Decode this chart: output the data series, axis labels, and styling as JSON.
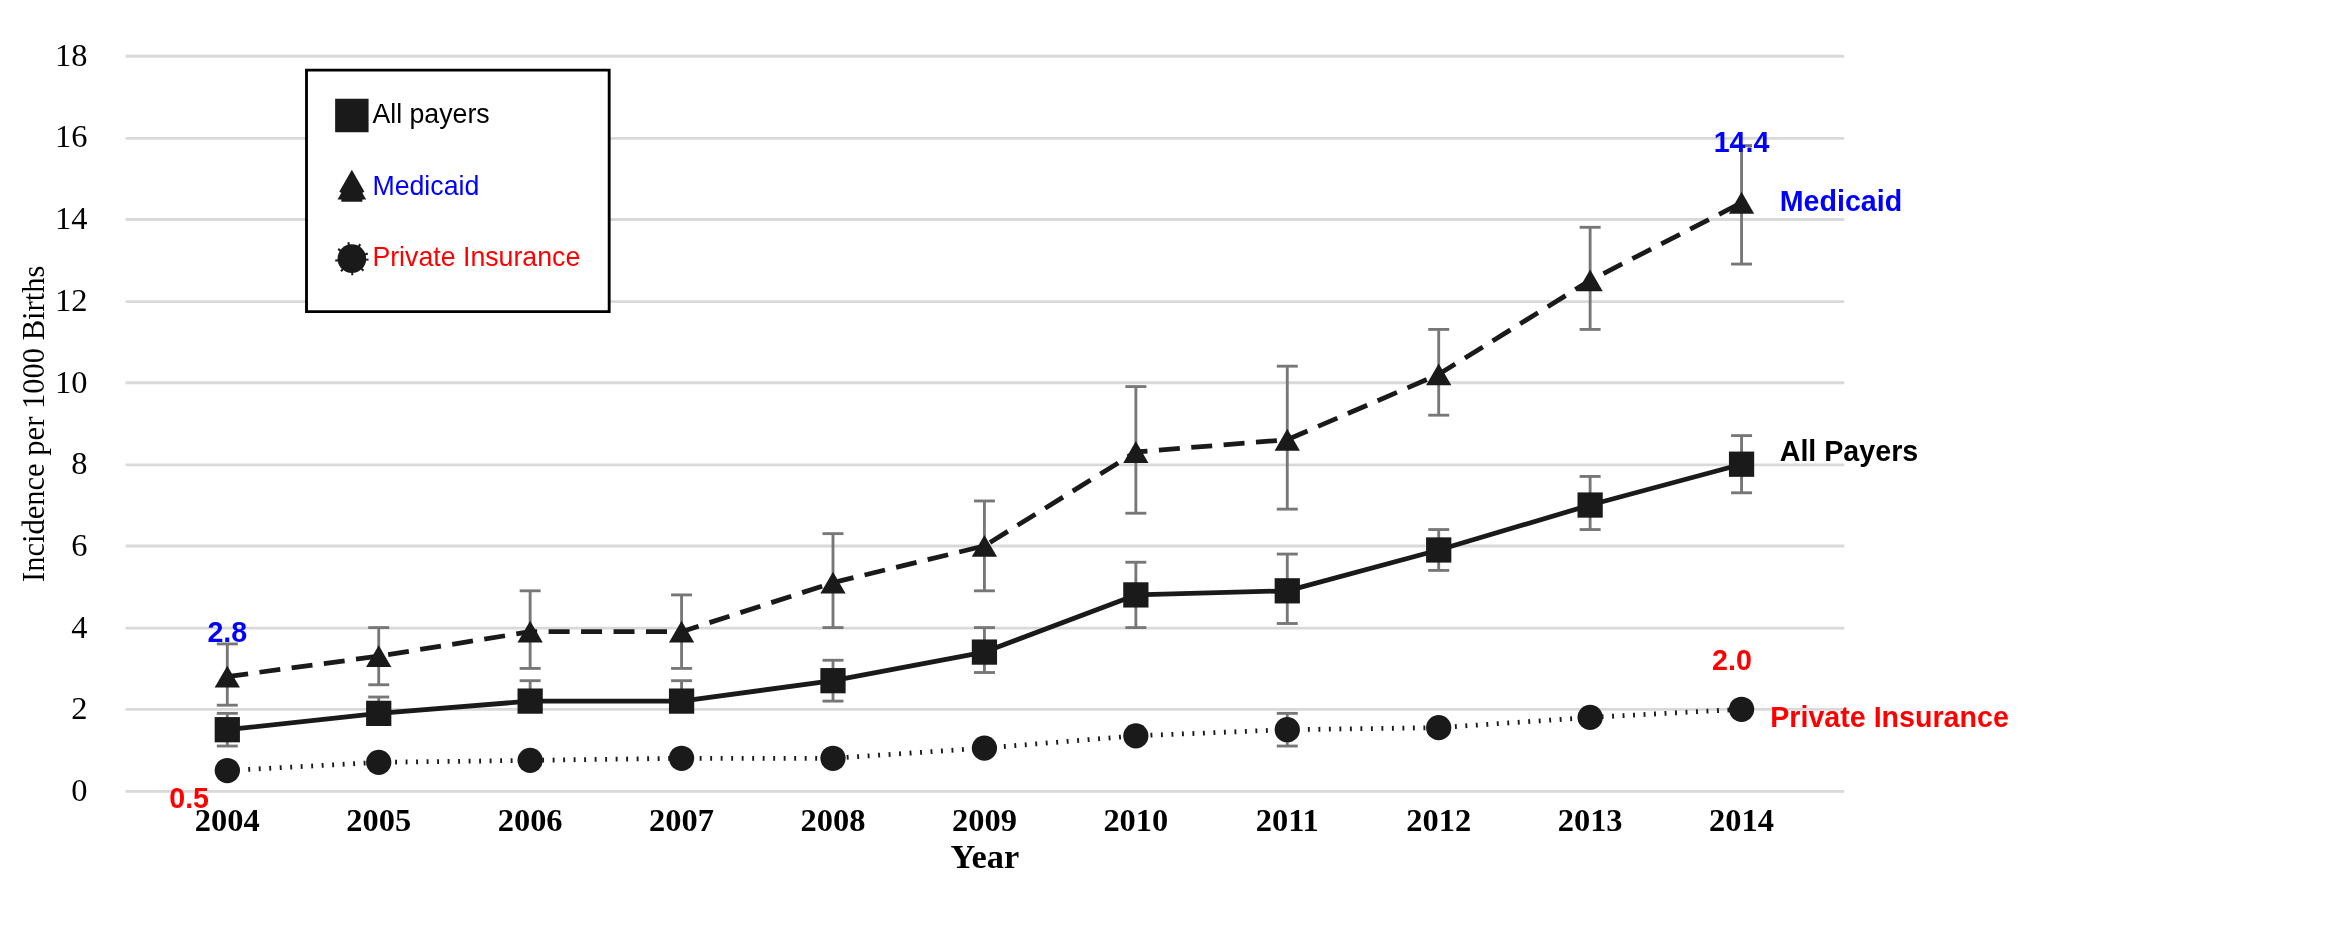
{
  "chart_data": {
    "type": "line",
    "xlabel": "Year",
    "ylabel": "Incidence per 1000 Births",
    "categories": [
      "2004",
      "2005",
      "2006",
      "2007",
      "2008",
      "2009",
      "2010",
      "2011",
      "2012",
      "2013",
      "2014"
    ],
    "ylim": [
      0,
      18
    ],
    "yticks": [
      0,
      2,
      4,
      6,
      8,
      10,
      12,
      14,
      16,
      18
    ],
    "grid": "y",
    "legend": "top left",
    "series": [
      {
        "name": "All payers",
        "color": "#1a1a1a",
        "marker": "square",
        "line_style": "solid",
        "values": [
          1.5,
          1.9,
          2.2,
          2.2,
          2.7,
          3.4,
          4.8,
          4.9,
          5.9,
          7.0,
          8.0
        ],
        "errors": [
          [
            1.1,
            1.9
          ],
          [
            1.9,
            2.3
          ],
          [
            2.2,
            2.7
          ],
          [
            2.2,
            2.7
          ],
          [
            2.2,
            3.2
          ],
          [
            2.9,
            4.0
          ],
          [
            4.0,
            5.6
          ],
          [
            4.1,
            5.8
          ],
          [
            5.4,
            6.4
          ],
          [
            6.4,
            7.7
          ],
          [
            7.3,
            8.7
          ]
        ]
      },
      {
        "name": "Medicaid",
        "color": "#1a1a1a",
        "marker": "triangle",
        "line_style": "dashed",
        "values": [
          2.8,
          3.3,
          3.9,
          3.9,
          5.1,
          6.0,
          8.3,
          8.6,
          10.2,
          12.5,
          14.4
        ],
        "errors": [
          [
            2.1,
            3.6
          ],
          [
            2.6,
            4.0
          ],
          [
            3.0,
            4.9
          ],
          [
            3.0,
            4.8
          ],
          [
            4.0,
            6.3
          ],
          [
            4.9,
            7.1
          ],
          [
            6.8,
            9.9
          ],
          [
            6.9,
            10.4
          ],
          [
            9.2,
            11.3
          ],
          [
            11.3,
            13.8
          ],
          [
            12.9,
            15.8
          ]
        ]
      },
      {
        "name": "Private Insurance",
        "color": "#1a1a1a",
        "marker": "circle",
        "line_style": "dotted",
        "values": [
          0.5,
          0.7,
          0.75,
          0.8,
          0.8,
          1.05,
          1.35,
          1.5,
          1.55,
          1.8,
          2.0
        ],
        "errors": [
          null,
          null,
          null,
          null,
          null,
          null,
          null,
          [
            1.1,
            1.9
          ],
          null,
          null,
          null
        ]
      }
    ],
    "annotations": [
      {
        "text": "2.8",
        "x": "2004",
        "y": 2.8
      },
      {
        "text": "14.4",
        "x": "2014",
        "y": 14.4
      },
      {
        "text": "0.5",
        "x": "2004",
        "y": 0.5
      },
      {
        "text": "2.0",
        "x": "2014",
        "y": 2.0
      },
      {
        "text": "Medicaid",
        "x": "2014",
        "y": 14.4
      },
      {
        "text": "All Payers",
        "x": "2014",
        "y": 8.0
      },
      {
        "text": "Private Insurance",
        "x": "2014",
        "y": 2.0
      }
    ]
  }
}
